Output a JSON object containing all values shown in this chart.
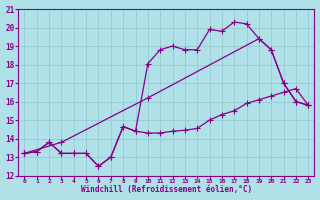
{
  "xlabel": "Windchill (Refroidissement éolien,°C)",
  "background_color": "#b0e0e8",
  "grid_color": "#90c8cc",
  "line_color": "#880088",
  "xlim": [
    -0.5,
    23.5
  ],
  "ylim": [
    12,
    21
  ],
  "yticks": [
    12,
    13,
    14,
    15,
    16,
    17,
    18,
    19,
    20,
    21
  ],
  "xticks": [
    0,
    1,
    2,
    3,
    4,
    5,
    6,
    7,
    8,
    9,
    10,
    11,
    12,
    13,
    14,
    15,
    16,
    17,
    18,
    19,
    20,
    21,
    22,
    23
  ],
  "line1_x": [
    0,
    1,
    2,
    3,
    4,
    5,
    6,
    7,
    8,
    9,
    10,
    11,
    12,
    13,
    14,
    15,
    16,
    17,
    18,
    19,
    20,
    21,
    22,
    23
  ],
  "line1_y": [
    13.2,
    13.3,
    13.8,
    13.2,
    13.2,
    13.2,
    12.5,
    13.0,
    14.65,
    14.4,
    14.3,
    14.3,
    14.4,
    14.45,
    14.55,
    15.0,
    15.3,
    15.5,
    15.9,
    16.1,
    16.3,
    16.5,
    16.7,
    15.8
  ],
  "line2_x": [
    0,
    1,
    2,
    3,
    4,
    5,
    6,
    7,
    8,
    9,
    10,
    11,
    12,
    13,
    14,
    15,
    16,
    17,
    18,
    19,
    20,
    21,
    22,
    23
  ],
  "line2_y": [
    13.2,
    13.3,
    13.8,
    13.2,
    13.2,
    13.2,
    12.5,
    13.0,
    14.65,
    14.4,
    18.05,
    18.8,
    19.0,
    18.8,
    18.8,
    19.9,
    19.8,
    20.3,
    20.2,
    19.4,
    18.8,
    17.0,
    16.0,
    15.8
  ],
  "line3_x": [
    0,
    3,
    10,
    19,
    20,
    21,
    22,
    23
  ],
  "line3_y": [
    13.2,
    13.8,
    16.2,
    19.4,
    18.8,
    17.0,
    16.0,
    15.8
  ],
  "markersize": 4,
  "linewidth": 0.9
}
